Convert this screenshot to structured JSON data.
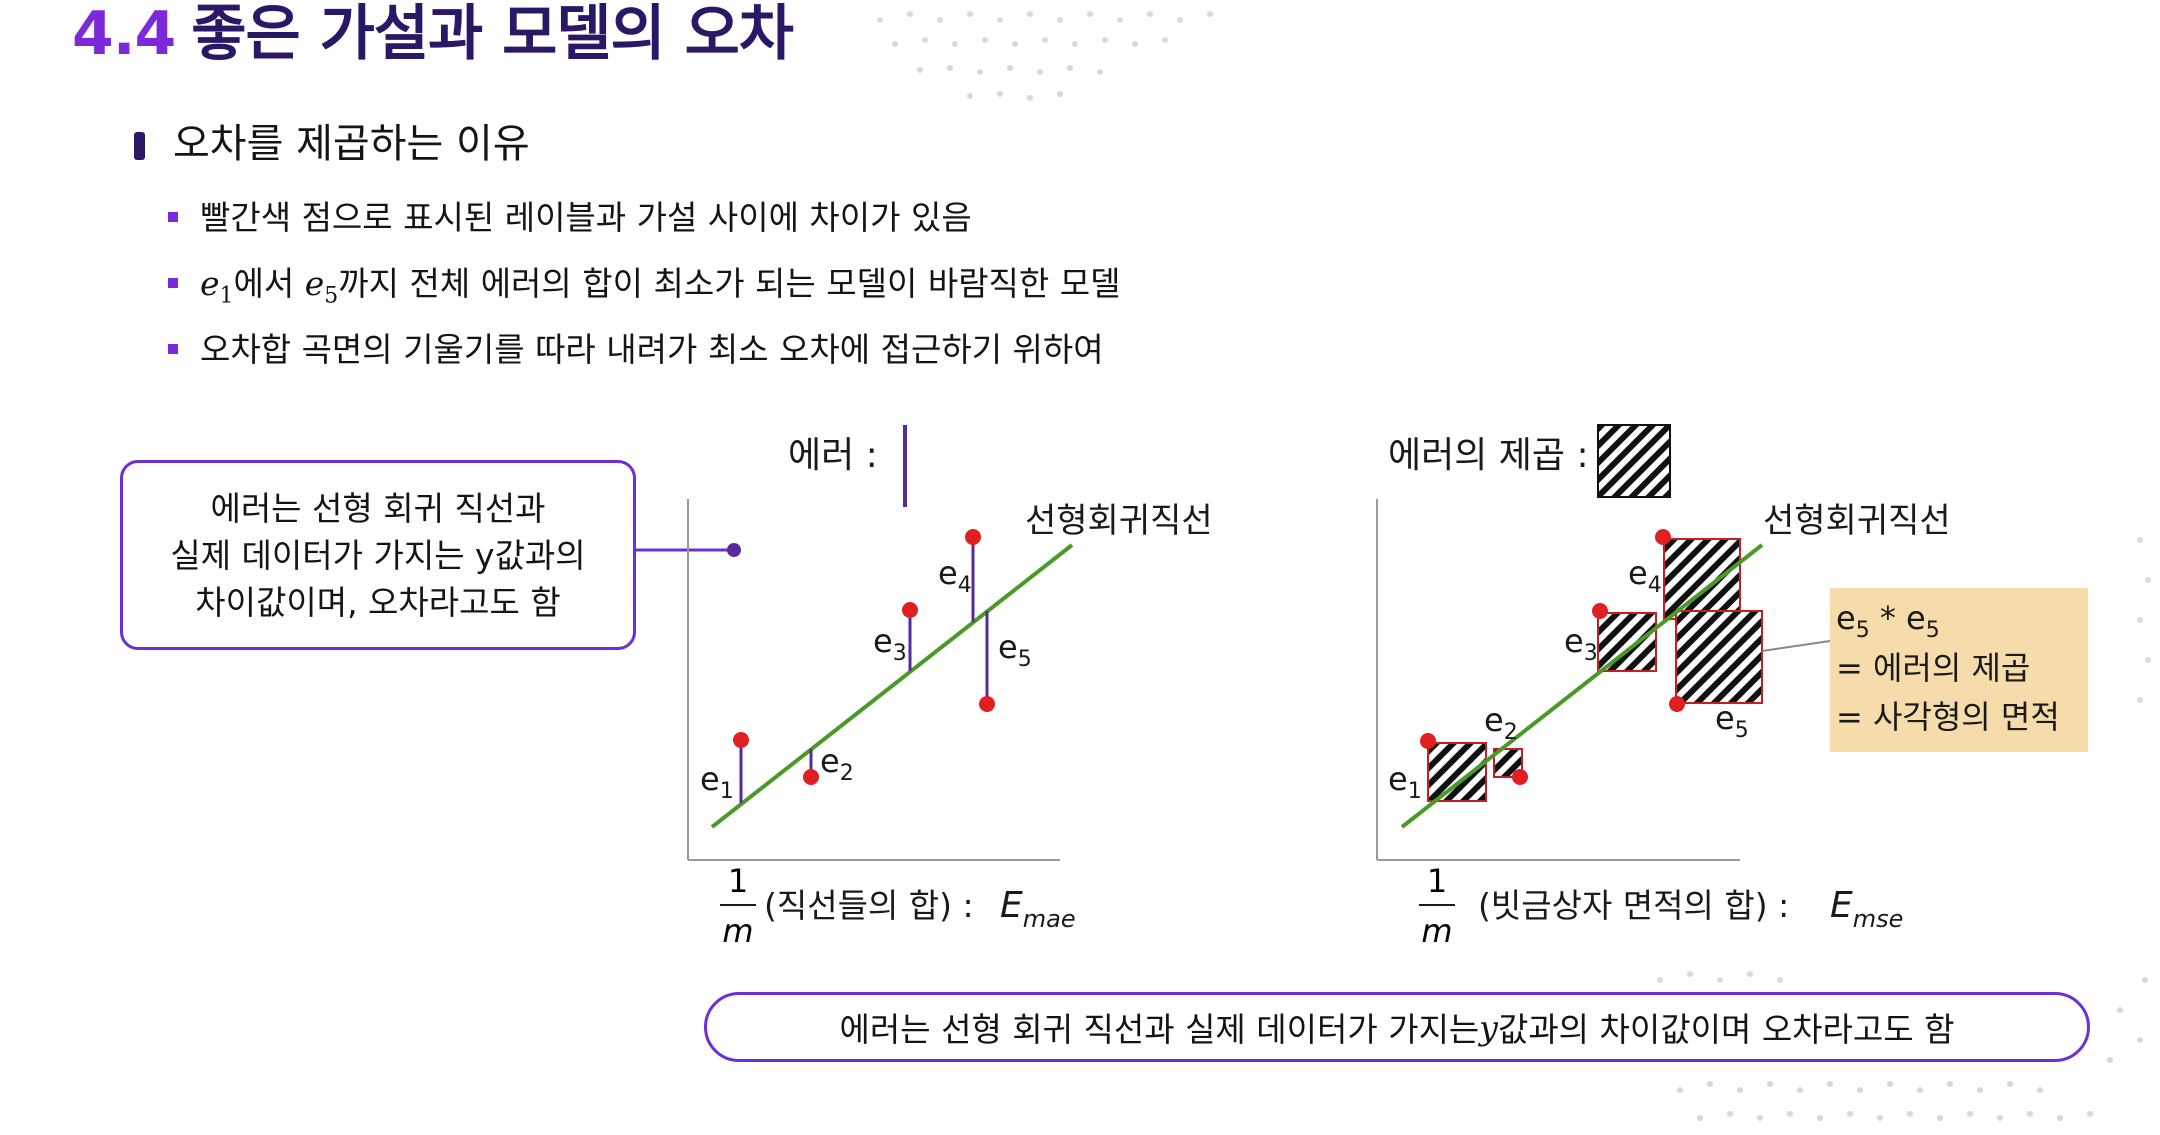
{
  "header": {
    "section_number": "4.4",
    "title": "좋은 가설과 모델의 오차"
  },
  "section": {
    "heading": "오차를 제곱하는 이유"
  },
  "bullets": {
    "b1": "빨간색 점으로 표시된 레이블과 가설 사이에 차이가 있음",
    "b2_e1": "e",
    "b2_e1_sub": "1",
    "b2_mid": "에서 ",
    "b2_e5": "e",
    "b2_e5_sub": "5",
    "b2_rest": "까지 전체 에러의 합이 최소가 되는 모델이 바람직한 모델",
    "b3": "오차합 곡면의 기울기를 따라 내려가 최소 오차에 접근하기 위하여"
  },
  "callout": {
    "line1": "에러는 선형 회귀 직선과",
    "line2": "실제 데이터가 가지는 y값과의",
    "line3": "차이값이며, 오차라고도 함"
  },
  "left_plot": {
    "legend_label": "에러 :",
    "line_label": "선형회귀직선",
    "errors": [
      "e",
      "e",
      "e",
      "e",
      "e"
    ],
    "error_subs": [
      "1",
      "2",
      "3",
      "4",
      "5"
    ],
    "formula_frac_num": "1",
    "formula_frac_den": "m",
    "formula_text": "(직선들의 합) :",
    "formula_E": "E",
    "formula_E_sub": "mae"
  },
  "right_plot": {
    "legend_label": "에러의 제곱 :",
    "line_label": "선형회귀직선",
    "errors": [
      "e",
      "e",
      "e",
      "e",
      "e"
    ],
    "error_subs": [
      "1",
      "2",
      "3",
      "4",
      "5"
    ],
    "note_line1_a": "e",
    "note_line1_sub_a": "5",
    "note_line1_star": " * ",
    "note_line1_b": "e",
    "note_line1_sub_b": "5",
    "note_line2": "= 에러의 제곱",
    "note_line3": "= 사각형의 면적",
    "formula_frac_num": "1",
    "formula_frac_den": "m",
    "formula_text": "(빗금상자 면적의 합) :",
    "formula_E": "E",
    "formula_E_sub": "mse"
  },
  "bottom": {
    "text_before": "에러는 선형 회귀 직선과 실제 데이터가 가지는 ",
    "text_y": "y",
    "text_after": "값과의 차이값이며 오차라고도 함"
  },
  "colors": {
    "title": "#2a1866",
    "accent": "#7c2ad9",
    "regression_line": "#4a9a2a",
    "error_line": "#5a2a9a",
    "data_point": "#e02020",
    "note_bg": "#f6dcaa"
  }
}
